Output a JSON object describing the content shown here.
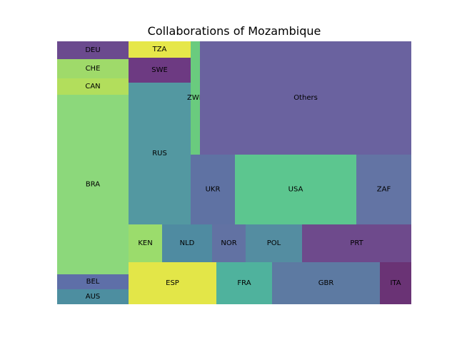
{
  "chart_data": {
    "type": "treemap",
    "title": "Collaborations of Mozambique",
    "items": [
      {
        "label": "DEU",
        "color": "#6b4a8e"
      },
      {
        "label": "CHE",
        "color": "#9fda6a"
      },
      {
        "label": "CAN",
        "color": "#b2de5c"
      },
      {
        "label": "BRA",
        "color": "#8cd87b"
      },
      {
        "label": "BEL",
        "color": "#5e6fa8"
      },
      {
        "label": "AUS",
        "color": "#4d8ea0"
      },
      {
        "label": "TZA",
        "color": "#e6e74a"
      },
      {
        "label": "SWE",
        "color": "#6d3a82"
      },
      {
        "label": "RUS",
        "color": "#5398a1"
      },
      {
        "label": "ZWE",
        "color": "#6acb7e"
      },
      {
        "label": "Others",
        "color": "#6a629f"
      },
      {
        "label": "UKR",
        "color": "#5f72a3"
      },
      {
        "label": "USA",
        "color": "#5cc68f"
      },
      {
        "label": "ZAF",
        "color": "#6374a4"
      },
      {
        "label": "KEN",
        "color": "#9bdc6c"
      },
      {
        "label": "NLD",
        "color": "#4f8ba1"
      },
      {
        "label": "NOR",
        "color": "#6272a3"
      },
      {
        "label": "POL",
        "color": "#548da1"
      },
      {
        "label": "PRT",
        "color": "#6e4a8c"
      },
      {
        "label": "ESP",
        "color": "#e3e648"
      },
      {
        "label": "FRA",
        "color": "#4fb29d"
      },
      {
        "label": "GBR",
        "color": "#5d7aa2"
      },
      {
        "label": "ITA",
        "color": "#6a3375"
      }
    ]
  }
}
